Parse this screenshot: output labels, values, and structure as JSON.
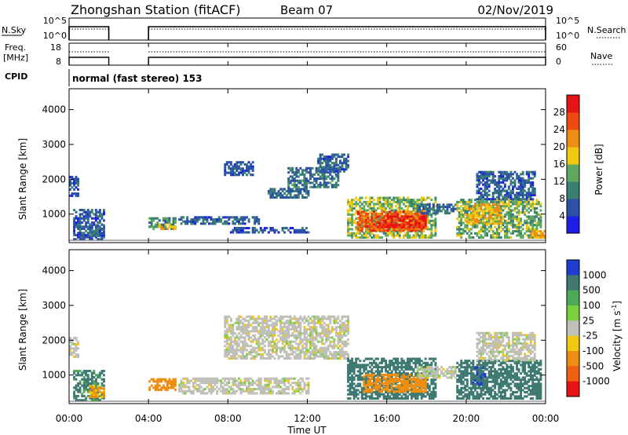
{
  "header": {
    "station": "Zhongshan Station (fitACF)",
    "beam": "Beam 07",
    "date": "02/Nov/2019"
  },
  "noise_panel": {
    "left_label": "N.Sky",
    "left_ticks": [
      "10^5",
      "10^0"
    ],
    "right_ticks": [
      "10^5",
      "10^0"
    ],
    "right_label": "N.Search"
  },
  "freq_panel": {
    "left_label_top": "Freq.",
    "left_label_bottom": "[MHz]",
    "left_ticks": [
      "18",
      "8"
    ],
    "right_ticks": [
      "60",
      "0"
    ],
    "right_label": "Nave"
  },
  "cpid": {
    "label": "CPID",
    "text": "normal (fast stereo) 153"
  },
  "power_panel": {
    "ylabel": "Slant Range [km]",
    "yticks": [
      "1000",
      "2000",
      "3000",
      "4000"
    ],
    "colorbar_label": "Power [dB]",
    "colorbar_ticks": [
      "4",
      "8",
      "12",
      "16",
      "20",
      "24",
      "28"
    ],
    "colors": [
      "#1e1ee6",
      "#2b52a8",
      "#3b7f73",
      "#5fa860",
      "#f0c810",
      "#ee8e10",
      "#f04a10",
      "#e61414"
    ]
  },
  "velocity_panel": {
    "ylabel": "Slant Range [km]",
    "yticks": [
      "1000",
      "2000",
      "3000",
      "4000"
    ],
    "colorbar_label": "Velocity [m s^-1]",
    "colorbar_ticks": [
      "1000",
      "500",
      "100",
      "25",
      "-25",
      "-100",
      "-500",
      "-1000"
    ],
    "colors": [
      "#1e3cd2",
      "#3f7a72",
      "#4cab58",
      "#7cd040",
      "#c0c0b8",
      "#f0c810",
      "#ee8e10",
      "#f06010",
      "#e61414"
    ]
  },
  "xaxis": {
    "label": "Time UT",
    "ticks": [
      "00:00",
      "04:00",
      "08:00",
      "12:00",
      "16:00",
      "20:00",
      "00:00"
    ]
  },
  "chart_data": {
    "type": "heatmap",
    "title": "Zhongshan Station (fitACF)",
    "xlabel": "Time UT",
    "ylabel": "Slant Range [km]",
    "x_range_hours": [
      0,
      24
    ],
    "y_range_km": [
      180,
      4600
    ],
    "data_gaps_hours": [
      [
        2.0,
        4.0
      ]
    ],
    "cpid": 153,
    "power_db_range": [
      0,
      32
    ],
    "velocity_range_ms": [
      -1000,
      1000
    ],
    "power_regions": [
      {
        "t": [
          0.0,
          0.5
        ],
        "r": [
          1500,
          2100
        ],
        "power_db": 6
      },
      {
        "t": [
          0.2,
          1.8
        ],
        "r": [
          250,
          1100
        ],
        "power_db": 7
      },
      {
        "t": [
          1.0,
          1.8
        ],
        "r": [
          350,
          700
        ],
        "power_db": 8
      },
      {
        "t": [
          4.0,
          5.3
        ],
        "r": [
          550,
          900
        ],
        "power_db": 11
      },
      {
        "t": [
          4.5,
          5.3
        ],
        "r": [
          550,
          700
        ],
        "power_db": 19
      },
      {
        "t": [
          5.5,
          9.5
        ],
        "r": [
          700,
          900
        ],
        "power_db": 7
      },
      {
        "t": [
          8.0,
          12.0
        ],
        "r": [
          450,
          600
        ],
        "power_db": 6
      },
      {
        "t": [
          7.8,
          9.2
        ],
        "r": [
          2100,
          2500
        ],
        "power_db": 7
      },
      {
        "t": [
          10.0,
          12.0
        ],
        "r": [
          1450,
          1700
        ],
        "power_db": 8
      },
      {
        "t": [
          11.0,
          13.5
        ],
        "r": [
          1750,
          2350
        ],
        "power_db": 9
      },
      {
        "t": [
          12.5,
          14.0
        ],
        "r": [
          2200,
          2700
        ],
        "power_db": 7
      },
      {
        "t": [
          14.0,
          18.5
        ],
        "r": [
          300,
          1500
        ],
        "power_db": 15
      },
      {
        "t": [
          14.5,
          18.0
        ],
        "r": [
          500,
          1100
        ],
        "power_db": 25
      },
      {
        "t": [
          15.5,
          18.0
        ],
        "r": [
          600,
          950
        ],
        "power_db": 30
      },
      {
        "t": [
          17.5,
          19.5
        ],
        "r": [
          1000,
          1250
        ],
        "power_db": 8
      },
      {
        "t": [
          19.5,
          23.8
        ],
        "r": [
          300,
          1400
        ],
        "power_db": 14
      },
      {
        "t": [
          20.0,
          21.8
        ],
        "r": [
          700,
          1300
        ],
        "power_db": 19
      },
      {
        "t": [
          23.2,
          24.0
        ],
        "r": [
          300,
          500
        ],
        "power_db": 20
      },
      {
        "t": [
          20.5,
          23.5
        ],
        "r": [
          1400,
          2200
        ],
        "power_db": 7
      }
    ],
    "velocity_regions": [
      {
        "t": [
          0.0,
          0.5
        ],
        "r": [
          1500,
          2100
        ],
        "v": 0
      },
      {
        "t": [
          0.2,
          1.8
        ],
        "r": [
          250,
          1100
        ],
        "v": 120
      },
      {
        "t": [
          1.0,
          1.8
        ],
        "r": [
          350,
          700
        ],
        "v": -150
      },
      {
        "t": [
          4.0,
          5.3
        ],
        "r": [
          550,
          900
        ],
        "v": -300
      },
      {
        "t": [
          5.5,
          12.0
        ],
        "r": [
          450,
          900
        ],
        "v": 0
      },
      {
        "t": [
          7.8,
          14.0
        ],
        "r": [
          1450,
          2700
        ],
        "v": 0
      },
      {
        "t": [
          14.0,
          18.5
        ],
        "r": [
          300,
          1500
        ],
        "v": 200
      },
      {
        "t": [
          14.8,
          18.0
        ],
        "r": [
          500,
          1000
        ],
        "v": -300
      },
      {
        "t": [
          17.5,
          19.5
        ],
        "r": [
          900,
          1250
        ],
        "v": 0
      },
      {
        "t": [
          19.5,
          23.8
        ],
        "r": [
          300,
          1400
        ],
        "v": 300
      },
      {
        "t": [
          20.3,
          21.0
        ],
        "r": [
          700,
          1200
        ],
        "v": 700
      },
      {
        "t": [
          20.5,
          23.5
        ],
        "r": [
          1400,
          2200
        ],
        "v": 0
      }
    ]
  }
}
